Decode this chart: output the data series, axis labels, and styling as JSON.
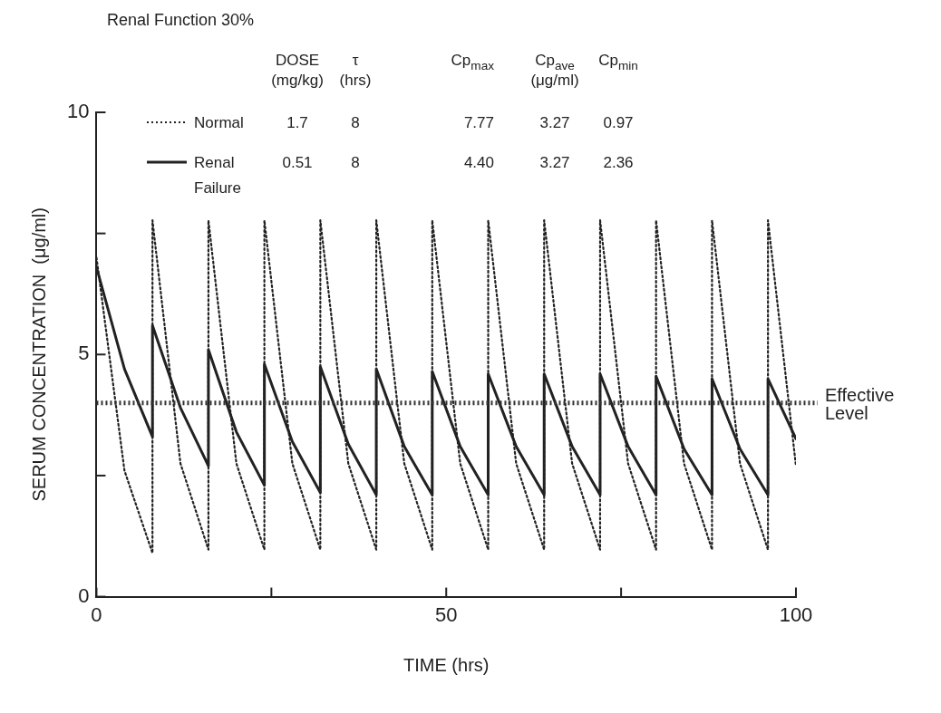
{
  "chart_data": {
    "type": "line",
    "title": "Renal Function 30%",
    "xlabel": "TIME (hrs)",
    "ylabel": "SERUM CONCENTRATION  (μg/ml)",
    "xlim": [
      0,
      100
    ],
    "xticks": [
      0,
      {
        "value": 25,
        "label": null
      },
      50,
      {
        "value": 75,
        "label": null
      },
      100
    ],
    "ylim": [
      0,
      10
    ],
    "yticks": [
      0,
      {
        "value": 2.5,
        "label": null
      },
      5,
      {
        "value": 7.5,
        "label": null
      },
      10
    ],
    "grid": false,
    "legend": "top",
    "marker": "none",
    "annotations": [
      "DOSE\n(mg/kg)",
      "τ\n(hrs)",
      "Cp$_{max}$",
      "Cp$_{ave}$\n(μg/ml)",
      "Cp$_{min}$",
      "1.7",
      "8",
      "7.77",
      "3.27",
      "0.97",
      "0.51",
      "8",
      "4.40",
      "3.27",
      "2.36"
    ],
    "ref_lines": [
      {
        "axis": "y",
        "value": 4.0,
        "label": "Effective\nLevel",
        "color": "#333333",
        "line_style": "dotted"
      }
    ],
    "series": [
      {
        "name": "Normal",
        "color": "#222222",
        "line_style": "dotted",
        "x": [
          0,
          4,
          8,
          8,
          12,
          16,
          16,
          20,
          24,
          24,
          28,
          32,
          32,
          36,
          40,
          40,
          44,
          48,
          48,
          52,
          56,
          56,
          60,
          64,
          64,
          68,
          72,
          72,
          76,
          80,
          80,
          84,
          88,
          88,
          92,
          96,
          96,
          100
        ],
        "values": [
          7.0,
          2.6,
          0.9,
          7.77,
          2.75,
          0.97,
          7.77,
          2.75,
          0.97,
          7.77,
          2.75,
          0.97,
          7.77,
          2.75,
          0.97,
          7.77,
          2.75,
          0.97,
          7.77,
          2.75,
          0.97,
          7.77,
          2.75,
          0.97,
          7.77,
          2.75,
          0.97,
          7.77,
          2.75,
          0.97,
          7.77,
          2.75,
          0.97,
          7.77,
          2.75,
          0.97,
          7.77,
          2.7
        ]
      },
      {
        "name": "Renal\nFailure",
        "color": "#222222",
        "line_style": "solid",
        "x": [
          0,
          4,
          8,
          8,
          12,
          16,
          16,
          20,
          24,
          24,
          28,
          32,
          32,
          36,
          40,
          40,
          44,
          48,
          48,
          52,
          56,
          56,
          60,
          64,
          64,
          68,
          72,
          72,
          76,
          80,
          80,
          84,
          88,
          88,
          92,
          96,
          96,
          100
        ],
        "values": [
          6.8,
          4.7,
          3.3,
          5.6,
          3.9,
          2.7,
          5.1,
          3.4,
          2.3,
          4.8,
          3.2,
          2.15,
          4.75,
          3.15,
          2.1,
          4.7,
          3.1,
          2.1,
          4.65,
          3.1,
          2.1,
          4.6,
          3.1,
          2.1,
          4.6,
          3.1,
          2.1,
          4.6,
          3.1,
          2.1,
          4.55,
          3.05,
          2.1,
          4.5,
          3.05,
          2.1,
          4.5,
          3.26
        ]
      }
    ]
  }
}
